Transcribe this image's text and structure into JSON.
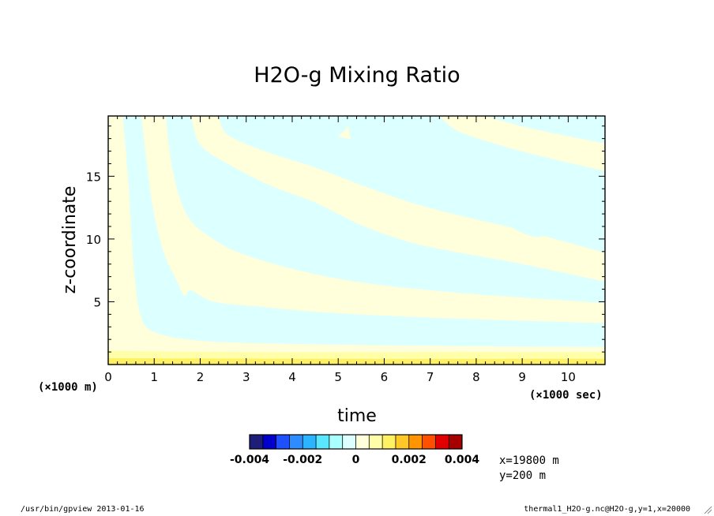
{
  "chart_data": {
    "type": "heatmap",
    "title": "H2O-g Mixing Ratio",
    "xlabel": "time",
    "ylabel": "z-coordinate",
    "x_unit_label": "(×1000 sec)",
    "y_unit_label": "(×1000 m)",
    "xlim": [
      0,
      10.8
    ],
    "ylim": [
      0,
      19.8
    ],
    "x_ticks": [
      "0",
      "1",
      "2",
      "3",
      "4",
      "5",
      "6",
      "7",
      "8",
      "9",
      "10"
    ],
    "y_ticks": [
      "5",
      "10",
      "15"
    ],
    "colorbar": {
      "colors": [
        "#1e1e78",
        "#0000cd",
        "#1e50ff",
        "#2d8cff",
        "#2db4ff",
        "#5ae6ff",
        "#aaffff",
        "#dcffff",
        "#ffffdc",
        "#ffffaa",
        "#fff064",
        "#ffc828",
        "#ff9600",
        "#ff5000",
        "#e10000",
        "#a50000"
      ],
      "tick_labels": [
        "-0.004",
        "-0.002",
        "0",
        "0.002",
        "0.004"
      ],
      "tick_values": [
        -0.004,
        -0.002,
        0,
        0.002,
        0.004
      ],
      "range": [
        -0.004,
        0.004
      ]
    },
    "field_colors": {
      "positive_weak": "#ffffdc",
      "negative_weak": "#dcffff",
      "positive_mid": "#ffffaa",
      "positive_strong": "#fff064"
    },
    "bands": [
      {
        "sign": "negative",
        "bottom": [
          [
            0.32,
            19.8
          ],
          [
            0.45,
            14
          ],
          [
            0.55,
            8
          ],
          [
            0.7,
            4
          ],
          [
            1.0,
            2.6
          ],
          [
            2,
            1.9
          ],
          [
            4,
            1.65
          ],
          [
            7,
            1.5
          ],
          [
            10.8,
            1.4
          ]
        ],
        "top": [
          [
            0.72,
            19.8
          ],
          [
            0.95,
            13
          ],
          [
            1.2,
            9
          ],
          [
            1.5,
            6.6
          ],
          [
            1.65,
            5.5
          ],
          [
            1.8,
            5.9
          ],
          [
            2.3,
            5.0
          ],
          [
            3.3,
            4.6
          ],
          [
            4.5,
            4.2
          ],
          [
            6,
            3.9
          ],
          [
            8,
            3.6
          ],
          [
            10.8,
            3.3
          ]
        ]
      },
      {
        "sign": "negative",
        "bottom": [
          [
            1.25,
            19.8
          ],
          [
            1.4,
            15.5
          ],
          [
            1.7,
            12
          ],
          [
            2.2,
            10.2
          ],
          [
            3,
            8.7
          ],
          [
            4.5,
            7.2
          ],
          [
            6,
            6.3
          ],
          [
            8,
            5.6
          ],
          [
            10.8,
            4.9
          ]
        ],
        "top": [
          [
            1.8,
            19.8
          ],
          [
            2.0,
            17.5
          ],
          [
            2.6,
            16
          ],
          [
            3.5,
            14.3
          ],
          [
            4.5,
            12.9
          ],
          [
            5.5,
            11.1
          ],
          [
            6.5,
            9.8
          ],
          [
            7.5,
            9.0
          ],
          [
            9,
            8.0
          ],
          [
            10.8,
            6.6
          ]
        ]
      },
      {
        "sign": "negative",
        "bottom": [
          [
            2.4,
            19.8
          ],
          [
            2.6,
            18.3
          ],
          [
            3.4,
            17.0
          ],
          [
            4.5,
            15.7
          ],
          [
            5.5,
            14.3
          ],
          [
            6.5,
            13.0
          ],
          [
            7.5,
            12.0
          ],
          [
            9,
            10.7
          ],
          [
            10.8,
            8.9
          ]
        ],
        "top": [
          [
            4.2,
            19.8
          ],
          [
            4.5,
            18.6
          ],
          [
            5.5,
            17.8
          ],
          [
            7.0,
            16.7
          ],
          [
            8.0,
            15.4
          ],
          [
            9.5,
            14.2
          ],
          [
            10.8,
            13.2
          ]
        ]
      },
      {
        "sign": "negative",
        "bottom": [
          [
            5.2,
            19.8
          ],
          [
            5.4,
            17.3
          ],
          [
            6.5,
            15.6
          ],
          [
            7.3,
            14.0
          ],
          [
            8.2,
            12.2
          ],
          [
            9.0,
            10.5
          ],
          [
            9.4,
            10.2
          ],
          [
            9.6,
            11.0
          ],
          [
            9.8,
            10.0
          ],
          [
            10.8,
            9.9
          ]
        ],
        "top": [
          [
            7.2,
            19.8
          ],
          [
            7.6,
            18.6
          ],
          [
            8.4,
            17.6
          ],
          [
            9.4,
            16.6
          ],
          [
            10.8,
            15.4
          ]
        ]
      },
      {
        "sign": "negative",
        "bottom": [
          [
            3.9,
            19.8
          ],
          [
            4.05,
            18.6
          ],
          [
            4.5,
            17.3
          ],
          [
            5.1,
            18.5
          ],
          [
            5.3,
            19.8
          ]
        ],
        "top": [
          [
            3.9,
            19.8
          ],
          [
            5.3,
            19.8
          ]
        ]
      },
      {
        "sign": "negative",
        "bottom": [
          [
            8.2,
            19.8
          ],
          [
            9.2,
            18.8
          ],
          [
            10.8,
            17.6
          ]
        ],
        "top": [
          [
            8.2,
            19.8
          ],
          [
            10.8,
            19.8
          ]
        ]
      }
    ],
    "surface_layers": [
      {
        "level": "positive_mid",
        "top": [
          [
            0,
            1.1
          ],
          [
            3,
            1.0
          ],
          [
            10.8,
            1.0
          ]
        ]
      },
      {
        "level": "positive_strong",
        "top": [
          [
            0,
            0.5
          ],
          [
            5,
            0.45
          ],
          [
            10.8,
            0.45
          ]
        ]
      }
    ]
  },
  "annotations": {
    "location_x": "x=19800 m",
    "location_y": "y=200 m",
    "footer_left": "/usr/bin/gpview  2013-01-16",
    "footer_right": "thermal1_H2O-g.nc@H2O-g,y=1,x=20000"
  }
}
